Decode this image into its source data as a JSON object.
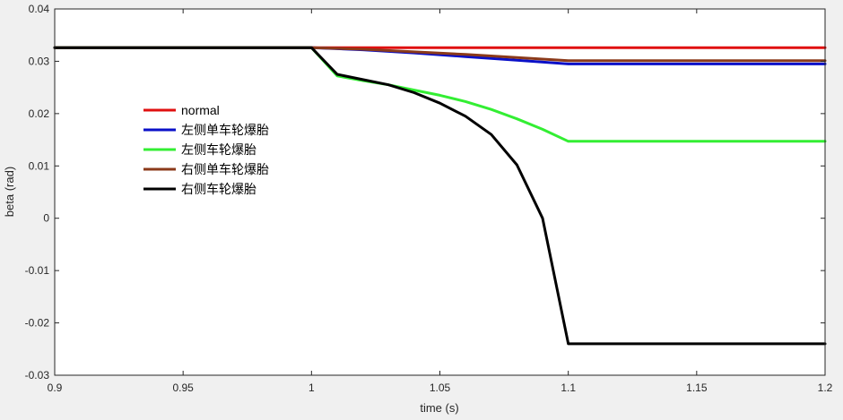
{
  "chart_data": {
    "type": "line",
    "xlabel": "time (s)",
    "ylabel": "beta (rad)",
    "xlim": [
      0.9,
      1.2
    ],
    "ylim": [
      -0.03,
      0.04
    ],
    "xticks": [
      0.9,
      0.95,
      1,
      1.05,
      1.1,
      1.15,
      1.2
    ],
    "xtick_labels": [
      "0.9",
      "0.95",
      "1",
      "1.05",
      "1.1",
      "1.15",
      "1.2"
    ],
    "yticks": [
      -0.03,
      -0.02,
      -0.01,
      0,
      0.01,
      0.02,
      0.03,
      0.04
    ],
    "ytick_labels": [
      "-0.03",
      "-0.02",
      "-0.01",
      "0",
      "0.01",
      "0.02",
      "0.03",
      "0.04"
    ],
    "grid": false,
    "legend_position": "center-left",
    "series": [
      {
        "name": "normal",
        "color": "#e01010",
        "x": [
          0.9,
          1.0,
          1.1,
          1.2
        ],
        "y": [
          0.0326,
          0.0326,
          0.0326,
          0.0326
        ]
      },
      {
        "name": "左侧单车轮爆胎",
        "color": "#0a10c8",
        "x": [
          0.9,
          1.0,
          1.02,
          1.04,
          1.06,
          1.08,
          1.1,
          1.2
        ],
        "y": [
          0.0326,
          0.0326,
          0.0322,
          0.0316,
          0.0309,
          0.0302,
          0.0295,
          0.0295
        ]
      },
      {
        "name": "左侧车轮爆胎",
        "color": "#33ee33",
        "x": [
          0.9,
          1.0,
          1.01,
          1.02,
          1.03,
          1.04,
          1.05,
          1.06,
          1.07,
          1.08,
          1.09,
          1.1,
          1.2
        ],
        "y": [
          0.0326,
          0.0326,
          0.0272,
          0.0263,
          0.0255,
          0.0245,
          0.0235,
          0.0223,
          0.0208,
          0.019,
          0.017,
          0.0147,
          0.0147
        ]
      },
      {
        "name": "右侧单车轮爆胎",
        "color": "#8b3a1a",
        "x": [
          0.9,
          1.0,
          1.02,
          1.04,
          1.06,
          1.08,
          1.1,
          1.2
        ],
        "y": [
          0.0326,
          0.0326,
          0.0323,
          0.0318,
          0.0313,
          0.0307,
          0.0301,
          0.0301
        ]
      },
      {
        "name": "右侧车轮爆胎",
        "color": "#000000",
        "x": [
          0.9,
          1.0,
          1.01,
          1.02,
          1.03,
          1.04,
          1.05,
          1.06,
          1.07,
          1.08,
          1.09,
          1.1,
          1.2
        ],
        "y": [
          0.0326,
          0.0326,
          0.0275,
          0.0265,
          0.0255,
          0.024,
          0.022,
          0.0195,
          0.016,
          0.0102,
          0.0,
          -0.024,
          -0.024
        ]
      }
    ]
  }
}
